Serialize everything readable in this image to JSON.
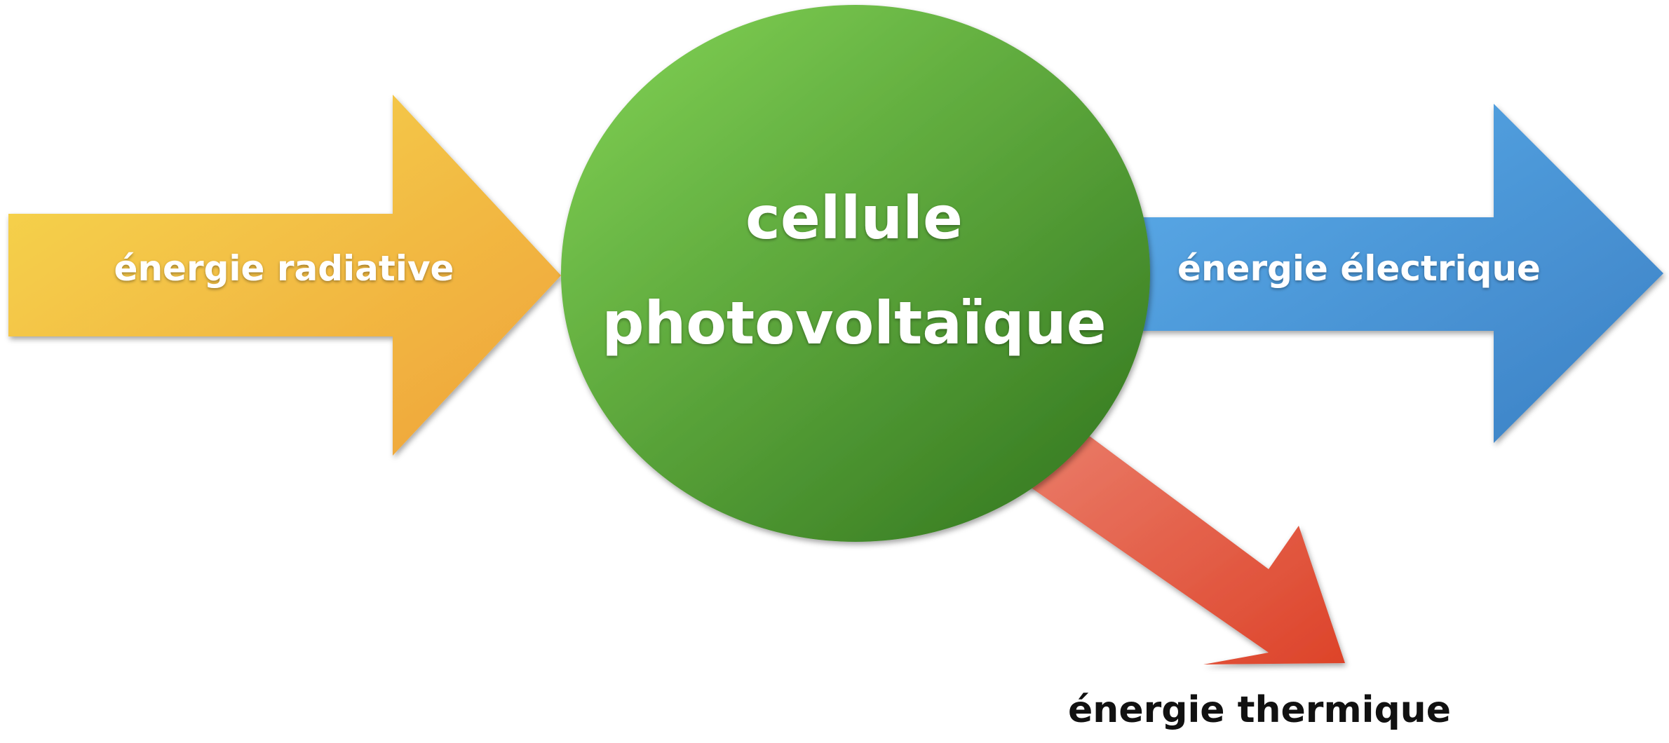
{
  "nodes": {
    "center": {
      "line1": "cellule",
      "line2": "photovoltaïque"
    }
  },
  "flows": {
    "input": {
      "label": "énergie radiative"
    },
    "output_electric": {
      "label": "énergie électrique"
    },
    "output_thermal": {
      "label": "énergie thermique"
    }
  },
  "colors": {
    "input_arrow_start": "#f6d94e",
    "input_arrow_end": "#efa23a",
    "cell_light": "#79c84f",
    "cell_dark": "#3a7f24",
    "electric_arrow_light": "#5cadea",
    "electric_arrow_dark": "#3b80c4",
    "thermal_arrow_light": "#ea7d6a",
    "thermal_arrow_dark": "#dd4329"
  }
}
